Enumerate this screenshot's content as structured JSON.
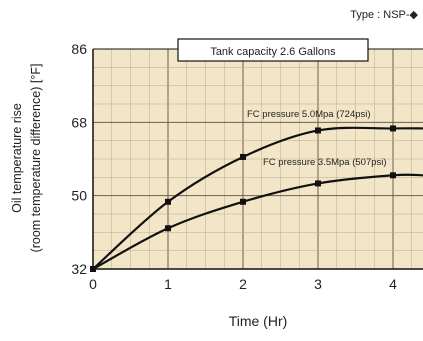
{
  "chart_data": {
    "type": "line",
    "type_label": "Type : NSP-◆",
    "title_box": "Tank capacity 2.6 Gallons",
    "xlabel": "Time (Hr)",
    "ylabel_line1": "Oil temperature rise",
    "ylabel_line2": "(room temperature difference) [°F]",
    "xlim": [
      0,
      4.4
    ],
    "ylim": [
      32,
      86
    ],
    "x_ticks": [
      "0",
      "1",
      "2",
      "3",
      "4"
    ],
    "y_ticks": [
      "32",
      "50",
      "68",
      "86"
    ],
    "grid": true,
    "plot_background": "#f3e6c8",
    "grid_color": "#b9ab8c",
    "line_color": "#111111",
    "series": [
      {
        "name": "FC pressure 5.0Mpa (724psi)",
        "x": [
          0,
          1,
          2,
          3,
          4,
          4.4
        ],
        "y": [
          32,
          48.5,
          59.5,
          66,
          66.5,
          66.5
        ]
      },
      {
        "name": "FC pressure 3.5Mpa (507psi)",
        "x": [
          0,
          1,
          2,
          3,
          4,
          4.4
        ],
        "y": [
          32,
          42,
          48.5,
          53,
          55,
          55
        ]
      }
    ]
  }
}
